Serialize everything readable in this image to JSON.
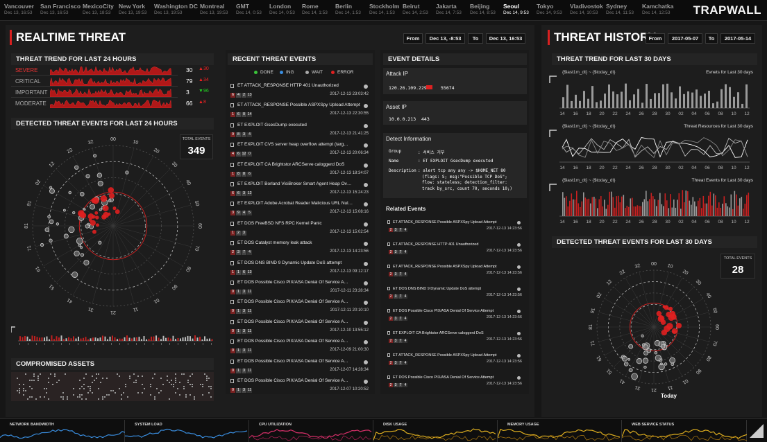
{
  "brand": "TRAPWALL",
  "cities": [
    {
      "name": "Vancouver",
      "time": "Dec 13, 16:53"
    },
    {
      "name": "San Francisco",
      "time": "Dec 13, 16:53"
    },
    {
      "name": "MexicoCity",
      "time": "Dec 13, 18:53"
    },
    {
      "name": "New York",
      "time": "Dec 13, 19:53"
    },
    {
      "name": "Washington DC",
      "time": "Dec 13, 19:53"
    },
    {
      "name": "Montreal",
      "time": "Dec 13, 19:53"
    },
    {
      "name": "GMT",
      "time": "Dec 14, 0:53"
    },
    {
      "name": "London",
      "time": "Dec 14, 0:53"
    },
    {
      "name": "Rome",
      "time": "Dec 14, 1:53"
    },
    {
      "name": "Berlin",
      "time": "Dec 14, 1:53"
    },
    {
      "name": "Stockholm",
      "time": "Dec 14, 1:53"
    },
    {
      "name": "Beirut",
      "time": "Dec 14, 2:53"
    },
    {
      "name": "Jakarta",
      "time": "Dec 14, 7:53"
    },
    {
      "name": "Beijing",
      "time": "Dec 14, 8:53"
    },
    {
      "name": "Seoul",
      "time": "Dec 14, 9:53"
    },
    {
      "name": "Tokyo",
      "time": "Dec 14, 9:53"
    },
    {
      "name": "Vladivostok",
      "time": "Dec 14, 10:53"
    },
    {
      "name": "Sydney",
      "time": "Dec 14, 11:53"
    },
    {
      "name": "Kamchatka",
      "time": "Dec 14, 12:53"
    }
  ],
  "realtime": {
    "title": "REALTIME THREAT",
    "from_label": "From",
    "from_value": "Dec 13, -8:53",
    "to_label": "To",
    "to_value": "Dec 13, 16:53",
    "trend_title": "THREAT TREND FOR LAST 24 HOURS",
    "trend": [
      {
        "label": "SEVERE",
        "count": "30",
        "delta": "30",
        "dir": "up"
      },
      {
        "label": "CRITICAL",
        "count": "79",
        "delta": "34",
        "dir": "up"
      },
      {
        "label": "IMPORTANT",
        "count": "3",
        "delta": "96",
        "dir": "down"
      },
      {
        "label": "MODERATE",
        "count": "66",
        "delta": "8",
        "dir": "up"
      }
    ],
    "detected_title": "DETECTED THREAT EVENTS FOR LAST 24 HOURS",
    "total_label": "TOTAL EVENTS",
    "total_value": "349",
    "radar_labels": [
      "00",
      "10",
      "20",
      "30",
      "40",
      "50",
      "60",
      "70",
      "80",
      "90",
      "01",
      "11",
      "21",
      "31",
      "41",
      "51",
      "61",
      "71",
      "81",
      "91",
      "02",
      "12",
      "22",
      "32"
    ],
    "compromised_title": "COMPROMISED ASSETS"
  },
  "recent": {
    "title": "RECENT THREAT EVENTS",
    "legend": [
      {
        "label": "DONE",
        "color": "#3ac43a"
      },
      {
        "label": "ING",
        "color": "#3a8ee0"
      },
      {
        "label": "WAIT",
        "color": "#aaaaaa"
      },
      {
        "label": "ERROR",
        "color": "#e02020"
      }
    ],
    "events": [
      {
        "title": "ET ATTACK_RESPONSE HTTP 401 Unauthorized",
        "badges": [
          "6",
          "4",
          "2",
          "13"
        ],
        "time": "2017-12-13 23:03:42"
      },
      {
        "title": "ET ATTACK_RESPONSE Possible ASPXSpy Upload Attempt",
        "badges": [
          "1",
          "6",
          "0",
          "14"
        ],
        "time": "2017-12-13 22:30:55"
      },
      {
        "title": "ET EXPLOIT GsecDump executed",
        "badges": [
          "9",
          "8",
          "3",
          "4"
        ],
        "time": "2017-12-13 21:41:25"
      },
      {
        "title": "ET EXPLOIT CVS server heap overflow attempt (targ…",
        "badges": [
          "4",
          "6",
          "12",
          "0"
        ],
        "time": "2017-12-13 20:06:34"
      },
      {
        "title": "ET EXPLOIT CA Brightstor ARCServe caloggerd DoS",
        "badges": [
          "1",
          "8",
          "8",
          "6"
        ],
        "time": "2017-12-13 18:34:07"
      },
      {
        "title": "ET EXPLOIT Borland VisiBroker Smart Agent Heap Ov…",
        "badges": [
          "6",
          "6",
          "3",
          "12"
        ],
        "time": "2017-12-13 15:24:23"
      },
      {
        "title": "ET EXPLOIT Adobe Acrobat Reader Malicious URL Nul…",
        "badges": [
          "3",
          "9",
          "4",
          "5"
        ],
        "time": "2017-12-13 15:08:16"
      },
      {
        "title": "ET DOS FreeBSD NFS RPC Kernel Panic",
        "badges": [
          "1",
          "2",
          "3"
        ],
        "time": "2017-12-13 15:02:54"
      },
      {
        "title": "ET DOS Catalyst memory leak attack",
        "badges": [
          "2",
          "3",
          "7",
          "4"
        ],
        "time": "2017-12-13 14:23:56"
      },
      {
        "title": "ET DOS DNS BIND 9 Dynamic Update DoS attempt",
        "badges": [
          "1",
          "1",
          "6",
          "13"
        ],
        "time": "2017-12-13 09:12:17"
      },
      {
        "title": "ET DOS Possible Cisco PIX/ASA Denial Of Service A…",
        "badges": [
          "0",
          "1",
          "3",
          "11"
        ],
        "time": "2017-12-11 23:28:34"
      },
      {
        "title": "ET DOS Possible Cisco PIX/ASA Denial Of Service A…",
        "badges": [
          "0",
          "1",
          "3",
          "11"
        ],
        "time": "2017-12-11 20:10:10"
      },
      {
        "title": "ET DOS Possible Cisco PIX/ASA Denial Of Service A…",
        "badges": [
          "0",
          "1",
          "3",
          "11"
        ],
        "time": "2017-12-10 13:55:12"
      },
      {
        "title": "ET DOS Possible Cisco PIX/ASA Denial Of Service A…",
        "badges": [
          "0",
          "1",
          "3",
          "11"
        ],
        "time": "2017-12-09 21:00:30"
      },
      {
        "title": "ET DOS Possible Cisco PIX/ASA Denial Of Service A…",
        "badges": [
          "0",
          "1",
          "3",
          "11"
        ],
        "time": "2017-12-07 14:28:34"
      },
      {
        "title": "ET DOS Possible Cisco PIX/ASA Denial Of Service A…",
        "badges": [
          "0",
          "1",
          "3",
          "11"
        ],
        "time": "2017-12-07 10:20:52"
      }
    ]
  },
  "details": {
    "title": "EVENT DETAILS",
    "attack_ip_label": "Attack IP",
    "attack_ip": "120.26.109.229",
    "attack_port": "55674",
    "asset_ip_label": "Asset IP",
    "asset_ip": "10.0.0.213",
    "asset_port": "443",
    "detect_label": "Detect Information",
    "group_key": "Group",
    "group_val": ": 서비스 거부",
    "name_key": "Name",
    "name_val": ": ET EXPLOIT GsecDump executed",
    "desc_key": "Description",
    "desc_lines": [
      ": alert tcp any any -> $HOME_NET 80",
      "(flags: S; msg:\"Possible TCP DoS\";",
      "flow: stateless; detection_filter:",
      "track by_src, count 70, seconds 10;)"
    ],
    "related_label": "Related Events",
    "related": [
      {
        "title": "ET ATTACK_RESPONSE Possible ASPXSpy Upload Attempt",
        "badges": [
          "2",
          "3",
          "7",
          "4"
        ],
        "time": "2017-12-13 14:23:56"
      },
      {
        "title": "ET ATTACK_RESPONSE HTTP 401 Unauthorized",
        "badges": [
          "2",
          "3",
          "7",
          "4"
        ],
        "time": "2017-12-13 14:23:56"
      },
      {
        "title": "ET ATTACK_RESPONSE Possible ASPXSpy Upload Attempt",
        "badges": [
          "2",
          "3",
          "7",
          "4"
        ],
        "time": "2017-12-13 14:23:56"
      },
      {
        "title": "ET DOS DNS BIND 9 Dynamic Update DoS attempt",
        "badges": [
          "2",
          "3",
          "7",
          "4"
        ],
        "time": "2017-12-13 14:23:56"
      },
      {
        "title": "ET DOS Possible Cisco PIX/ASA Denial Of Service Attempt",
        "badges": [
          "2",
          "3",
          "7",
          "4"
        ],
        "time": "2017-12-13 14:23:56"
      },
      {
        "title": "ET EXPLOIT CA Brightstor ARCServe caloggerd DoS",
        "badges": [
          "2",
          "3",
          "7",
          "4"
        ],
        "time": "2017-12-13 14:23:56"
      },
      {
        "title": "ET ATTACK_RESPONSE Possible ASPXSpy Upload Attempt",
        "badges": [
          "2",
          "3",
          "7",
          "4"
        ],
        "time": "2017-12-13 14:23:56"
      },
      {
        "title": "ET DOS Possible Cisco PIX/ASA Denial Of Service Attempt",
        "badges": [
          "2",
          "3",
          "7",
          "4"
        ],
        "time": "2017-12-13 14:23:56"
      }
    ]
  },
  "history": {
    "title": "THREAT HISTORY",
    "from_label": "From",
    "from_value": "2017-05-07",
    "to_label": "To",
    "to_value": "2017-05-14",
    "trend_title": "THREAT TREND FOR LAST 30 DAYS",
    "range_text": "{$last1m_dt} ~ {$today_dt}",
    "chart1_label": "Evnets for Last 30 days",
    "chart2_label": "Threat Resources for Last 30 days",
    "chart3_label": "Threat Events for Last 30 days",
    "x_ticks": [
      "14",
      "16",
      "18",
      "20",
      "22",
      "24",
      "26",
      "28",
      "30",
      "02",
      "04",
      "06",
      "08",
      "10",
      "12"
    ],
    "detected_title": "DETECTED THREAT EVENTS FOR LAST 30 DAYS",
    "total_label": "TOTAL EVENTS",
    "total_value": "28",
    "today_label": "Today"
  },
  "monitors": [
    {
      "label": "NETWORK BANDWIDTH",
      "color": "#3a8ee0"
    },
    {
      "label": "SYSTEM LOAD",
      "color": "#3a8ee0"
    },
    {
      "label": "CPU UTILIZATION",
      "color": "#d8306a"
    },
    {
      "label": "DISK USAGE",
      "color": "#e0b020"
    },
    {
      "label": "MEMORY USAGE",
      "color": "#e0b020"
    },
    {
      "label": "WEB SERVICE STATUS",
      "color": "#e0b020"
    }
  ]
}
